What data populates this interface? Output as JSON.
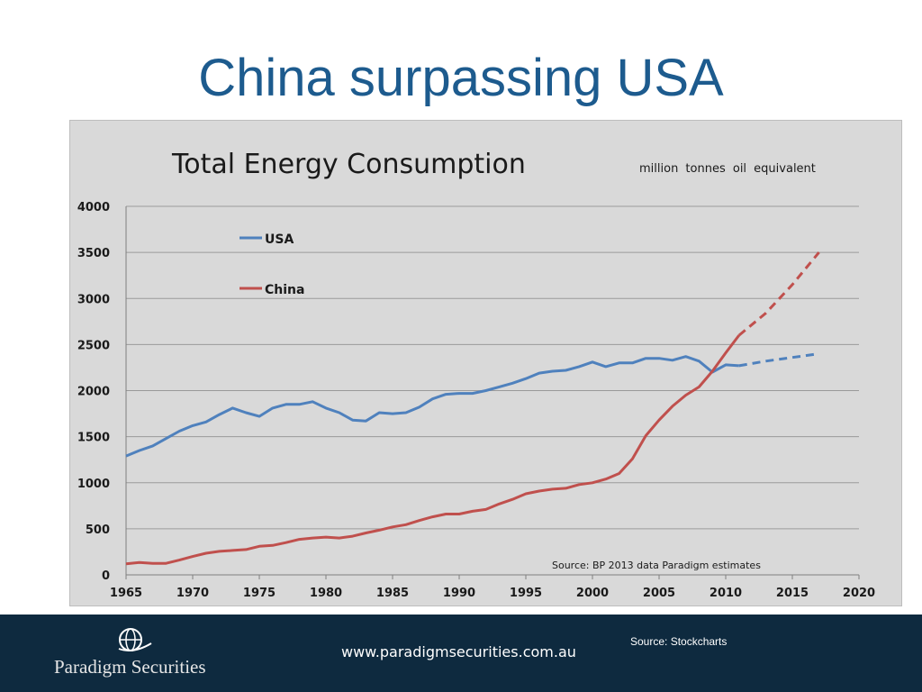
{
  "slide": {
    "title": "China surpassing USA",
    "footer": {
      "company": "Paradigm Securities",
      "website": "www.paradigmsecurities.com.au",
      "source": "Source: Stockcharts"
    }
  },
  "chart_data": {
    "type": "line",
    "title": "Total Energy Consumption",
    "subtitle": "million tonnes oil equivalent",
    "note": "Source: BP 2013 data Paradigm estimates",
    "xlim": [
      1965,
      2020
    ],
    "ylim": [
      0,
      4000
    ],
    "xticks": [
      "1965",
      "1970",
      "1975",
      "1980",
      "1985",
      "1990",
      "1995",
      "2000",
      "2005",
      "2010",
      "2015",
      "2020"
    ],
    "yticks": [
      "0",
      "500",
      "1000",
      "1500",
      "2000",
      "2500",
      "3000",
      "3500",
      "4000"
    ],
    "grid": "horizontal",
    "legend_placement": "top-left",
    "series": [
      {
        "name": "USA",
        "color": "#4f81bd",
        "x": [
          1965,
          1966,
          1967,
          1968,
          1969,
          1970,
          1971,
          1972,
          1973,
          1974,
          1975,
          1976,
          1977,
          1978,
          1979,
          1980,
          1981,
          1982,
          1983,
          1984,
          1985,
          1986,
          1987,
          1988,
          1989,
          1990,
          1991,
          1992,
          1993,
          1994,
          1995,
          1996,
          1997,
          1998,
          1999,
          2000,
          2001,
          2002,
          2003,
          2004,
          2005,
          2006,
          2007,
          2008,
          2009,
          2010,
          2011
        ],
        "values": [
          1290,
          1350,
          1400,
          1480,
          1560,
          1620,
          1660,
          1740,
          1810,
          1760,
          1720,
          1810,
          1850,
          1850,
          1880,
          1810,
          1760,
          1680,
          1670,
          1760,
          1750,
          1760,
          1820,
          1910,
          1960,
          1970,
          1970,
          2000,
          2040,
          2080,
          2130,
          2190,
          2210,
          2220,
          2260,
          2310,
          2260,
          2300,
          2300,
          2350,
          2350,
          2330,
          2370,
          2320,
          2200,
          2280,
          2270
        ],
        "projection": {
          "x": [
            2011,
            2013,
            2015,
            2017
          ],
          "values": [
            2270,
            2320,
            2360,
            2400
          ]
        }
      },
      {
        "name": "China",
        "color": "#c0504d",
        "x": [
          1965,
          1966,
          1967,
          1968,
          1969,
          1970,
          1971,
          1972,
          1973,
          1974,
          1975,
          1976,
          1977,
          1978,
          1979,
          1980,
          1981,
          1982,
          1983,
          1984,
          1985,
          1986,
          1987,
          1988,
          1989,
          1990,
          1991,
          1992,
          1993,
          1994,
          1995,
          1996,
          1997,
          1998,
          1999,
          2000,
          2001,
          2002,
          2003,
          2004,
          2005,
          2006,
          2007,
          2008,
          2009,
          2010,
          2011
        ],
        "values": [
          120,
          135,
          125,
          125,
          160,
          200,
          235,
          255,
          265,
          275,
          310,
          320,
          350,
          385,
          400,
          410,
          400,
          420,
          455,
          485,
          520,
          545,
          590,
          630,
          660,
          660,
          690,
          710,
          770,
          820,
          880,
          910,
          930,
          940,
          980,
          1000,
          1040,
          1100,
          1260,
          1510,
          1680,
          1830,
          1950,
          2040,
          2210,
          2410,
          2600
        ],
        "projection": {
          "x": [
            2011,
            2013,
            2015,
            2017
          ],
          "values": [
            2600,
            2840,
            3150,
            3500
          ]
        }
      }
    ]
  }
}
